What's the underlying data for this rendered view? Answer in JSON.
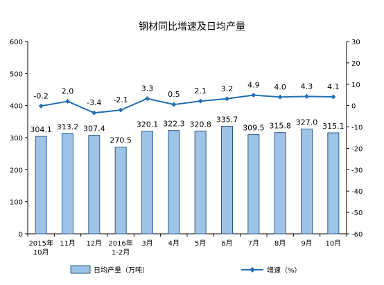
{
  "chart_data": {
    "type": "bar+line",
    "title": "钢材同比增速及日均产量",
    "categories": [
      "2015年\n10月",
      "11月",
      "12月",
      "2016年\n1-2月",
      "3月",
      "4月",
      "5月",
      "6月",
      "7月",
      "8月",
      "9月",
      "10月"
    ],
    "series": [
      {
        "name": "日均产量（万吨）",
        "type": "bar",
        "axis": "left",
        "values": [
          304.1,
          313.2,
          307.4,
          270.5,
          320.1,
          322.3,
          320.8,
          335.7,
          309.5,
          315.8,
          327.0,
          315.1
        ],
        "labels": [
          "304.1",
          "313.2",
          "307.4",
          "270.5",
          "320.1",
          "322.3",
          "320.8",
          "335.7",
          "309.5",
          "315.8",
          "327.0",
          "315.1"
        ]
      },
      {
        "name": "增速（%）",
        "type": "line",
        "axis": "right",
        "values": [
          -0.2,
          2.0,
          -3.4,
          -2.1,
          3.3,
          0.5,
          2.1,
          3.2,
          4.9,
          4.0,
          4.3,
          4.1
        ],
        "labels": [
          "-0.2",
          "2.0",
          "-3.4",
          "-2.1",
          "3.3",
          "0.5",
          "2.1",
          "3.2",
          "4.9",
          "4.0",
          "4.3",
          "4.1"
        ]
      }
    ],
    "y_left": {
      "min": 0,
      "max": 600,
      "ticks": [
        "0",
        "100",
        "200",
        "300",
        "400",
        "500",
        "600"
      ]
    },
    "y_right": {
      "min": -60,
      "max": 30,
      "ticks": [
        "-60",
        "-50",
        "-40",
        "-30",
        "-20",
        "-10",
        "0",
        "10",
        "20",
        "30"
      ]
    },
    "legend": {
      "position": "bottom"
    },
    "grid": false,
    "colors": {
      "bar_fill": "#9DC3E6",
      "bar_stroke": "#2E5C8A",
      "line": "#1F6FB8",
      "axis": "#000000"
    }
  }
}
